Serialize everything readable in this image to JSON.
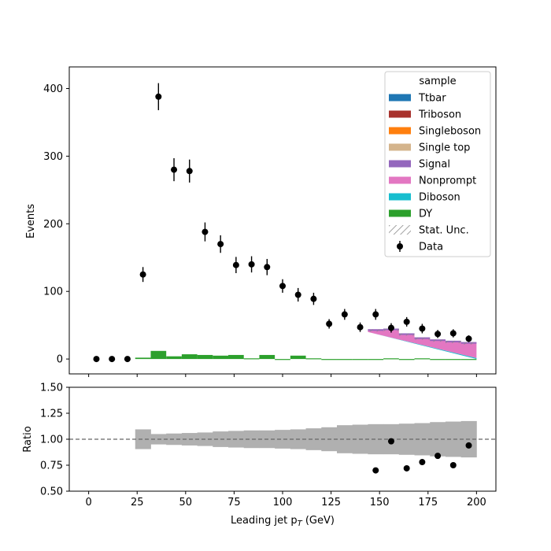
{
  "chart_data": [
    {
      "type": "bar",
      "panel": "main",
      "xlabel": "Leading jet  p_T (GeV)",
      "ylabel": "Events",
      "xlim": [
        -10,
        210
      ],
      "ylim": [
        -22,
        432
      ],
      "yticks": [
        0,
        100,
        200,
        300,
        400
      ],
      "legend": {
        "title": "sample",
        "placement": "top-right",
        "entries": [
          {
            "label": "Ttbar",
            "color": "#1f77b4",
            "kind": "patch"
          },
          {
            "label": "Triboson",
            "color": "#a8322d",
            "kind": "patch"
          },
          {
            "label": "Singleboson",
            "color": "#ff7f0e",
            "kind": "patch"
          },
          {
            "label": "Single top",
            "color": "#d4b48c",
            "kind": "patch"
          },
          {
            "label": "Signal",
            "color": "#9467bd",
            "kind": "patch"
          },
          {
            "label": "Nonprompt",
            "color": "#e377c2",
            "kind": "patch"
          },
          {
            "label": "Diboson",
            "color": "#17becf",
            "kind": "patch"
          },
          {
            "label": "DY",
            "color": "#2ca02c",
            "kind": "patch"
          },
          {
            "label": "Stat. Unc.",
            "color": "#888888",
            "kind": "hatch"
          },
          {
            "label": "Data",
            "color": "#000000",
            "kind": "marker"
          }
        ]
      },
      "data": {
        "x": [
          4,
          12,
          20,
          28,
          36,
          44,
          52,
          60,
          68,
          76,
          84,
          92,
          100,
          108,
          116,
          124,
          132,
          140,
          148,
          156,
          164,
          172,
          180,
          188,
          196
        ],
        "y": [
          0,
          0,
          0,
          125,
          388,
          280,
          278,
          188,
          170,
          139,
          140,
          136,
          108,
          95,
          89,
          52,
          66,
          47,
          66,
          46,
          55,
          45,
          37,
          38,
          30
        ],
        "yerr": [
          0,
          0,
          0,
          11,
          20,
          17,
          17,
          14,
          13,
          12,
          12,
          12,
          10,
          10,
          9,
          7,
          8,
          7,
          8,
          7,
          7,
          7,
          6,
          6,
          5
        ]
      },
      "dy_bins": {
        "edges": [
          24,
          32,
          40,
          48,
          56,
          64,
          72,
          80,
          88,
          96,
          104,
          112,
          120,
          128,
          136,
          144,
          152,
          160,
          168,
          176,
          184,
          192,
          200
        ],
        "values": [
          2,
          12,
          4,
          7,
          6,
          5,
          6,
          1,
          6,
          0,
          5,
          1,
          -1,
          -1,
          0,
          -1,
          1,
          0,
          1,
          0,
          0,
          0
        ]
      },
      "stack_tail": {
        "x": [
          144,
          152,
          160,
          168,
          176,
          184,
          192,
          200
        ],
        "diboson_top": [
          40,
          34.5,
          29,
          23.5,
          18,
          12.5,
          7,
          1.5
        ],
        "total_top": [
          44,
          45,
          38,
          32,
          29,
          27,
          25,
          24
        ]
      }
    },
    {
      "type": "scatter",
      "panel": "ratio",
      "xlabel": "Leading jet  p_T (GeV)",
      "ylabel": "Ratio",
      "xlim": [
        -10,
        210
      ],
      "ylim": [
        0.5,
        1.5
      ],
      "xticks": [
        0,
        25,
        50,
        75,
        100,
        125,
        150,
        175,
        200
      ],
      "yticks": [
        0.5,
        0.75,
        1.0,
        1.25,
        1.5
      ],
      "reference_line": 1.0,
      "unc_band": {
        "edges": [
          24,
          32,
          40,
          48,
          56,
          64,
          72,
          80,
          88,
          96,
          104,
          112,
          120,
          128,
          136,
          144,
          152,
          160,
          168,
          176,
          184,
          192,
          200
        ],
        "half_width": [
          0.095,
          0.05,
          0.055,
          0.06,
          0.065,
          0.075,
          0.08,
          0.085,
          0.085,
          0.09,
          0.095,
          0.105,
          0.115,
          0.135,
          0.14,
          0.145,
          0.145,
          0.15,
          0.155,
          0.165,
          0.17,
          0.175,
          0.21
        ]
      },
      "data": {
        "x": [
          148,
          156,
          164,
          172,
          180,
          188,
          196
        ],
        "y": [
          0.7,
          0.98,
          0.72,
          0.78,
          0.84,
          0.75,
          0.94
        ]
      }
    }
  ],
  "text": {
    "legend_title": "sample",
    "main_ylabel": "Events",
    "ratio_ylabel": "Ratio",
    "xlabel_main": "Leading jet  p",
    "xlabel_sub": "T",
    "xlabel_unit": " (GeV)"
  }
}
